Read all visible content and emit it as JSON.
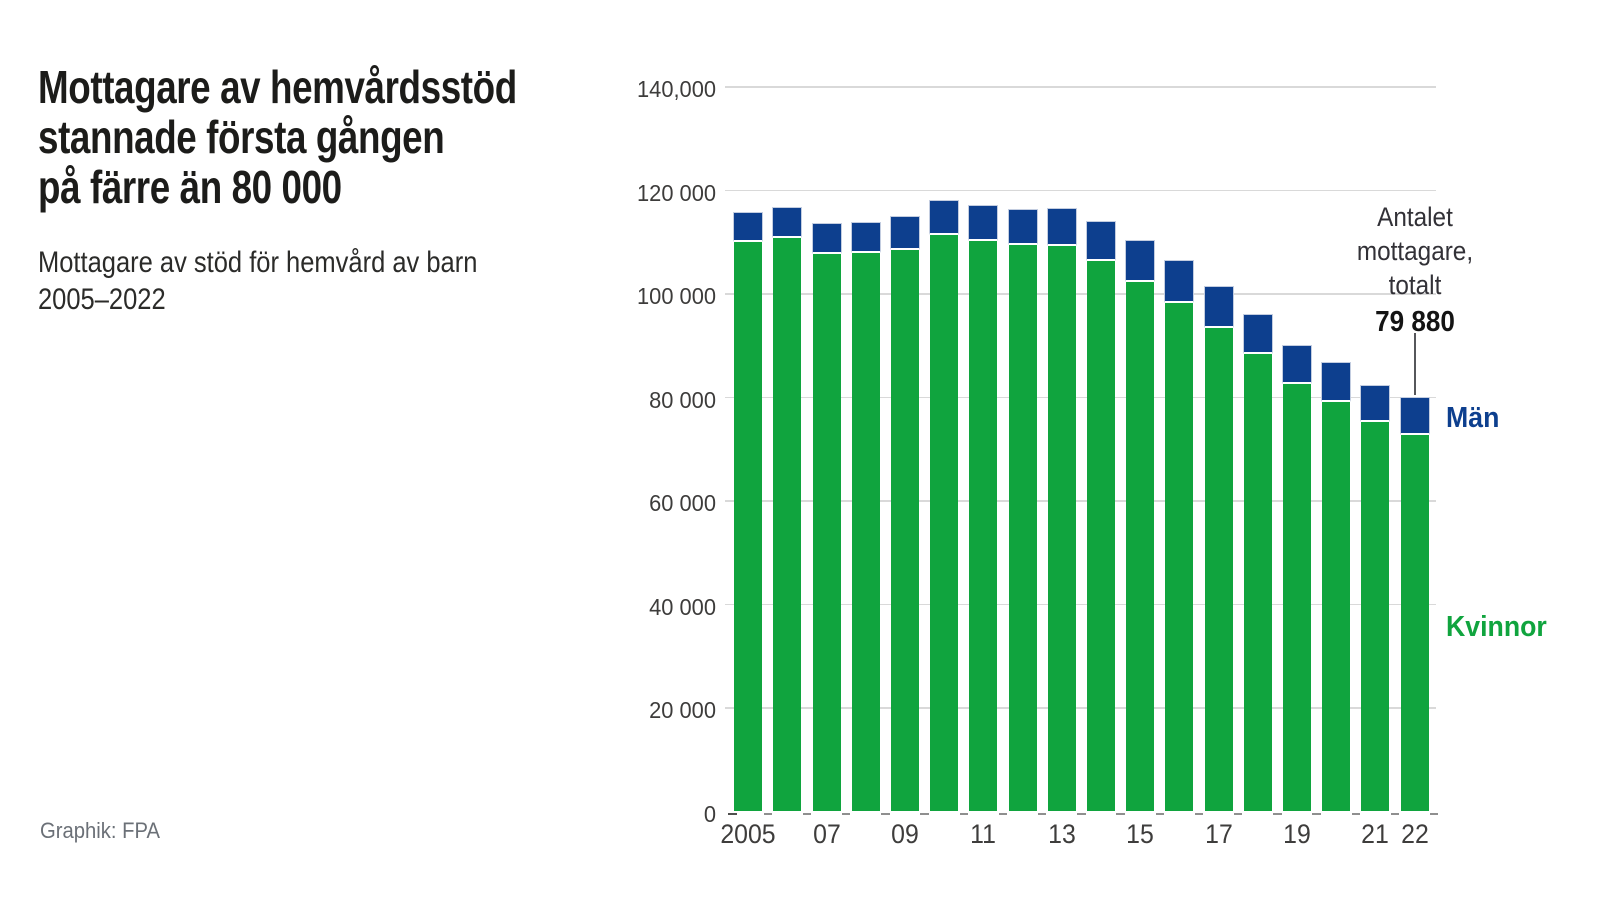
{
  "header": {
    "title_lines": [
      "Mottagare av hemvårdsstöd",
      "stannade första gången",
      "på färre än 80 000"
    ],
    "subtitle_lines": [
      "Mottagare av stöd för hemvård av barn",
      "2005–2022"
    ]
  },
  "footer": {
    "credit": "Graphik: FPA"
  },
  "chart_data": {
    "type": "bar",
    "stacked": true,
    "title": "Mottagare av hemvårdsstöd stannade första gången på färre än 80 000",
    "subtitle": "Mottagare av stöd för hemvård av barn 2005–2022",
    "categories": [
      2005,
      2006,
      2007,
      2008,
      2009,
      2010,
      2011,
      2012,
      2013,
      2014,
      2015,
      2016,
      2017,
      2018,
      2019,
      2020,
      2021,
      2022
    ],
    "series": [
      {
        "name": "Kvinnor",
        "color": "#10a43e",
        "values": [
          110400,
          111300,
          108100,
          108300,
          108900,
          111800,
          110700,
          109800,
          109600,
          106700,
          102700,
          98600,
          93900,
          88800,
          83000,
          79600,
          75700,
          73200
        ]
      },
      {
        "name": "Män",
        "color": "#0d3f8e",
        "values": [
          5200,
          5400,
          5500,
          5500,
          5900,
          6100,
          6400,
          6400,
          6800,
          7300,
          7500,
          7700,
          7400,
          7100,
          7000,
          7100,
          6500,
          6680
        ]
      }
    ],
    "totals": [
      115600,
      116700,
      113600,
      113800,
      114800,
      117900,
      117100,
      116200,
      116400,
      114000,
      110200,
      106300,
      101300,
      95900,
      90000,
      86700,
      82200,
      79880
    ],
    "ylim": [
      0,
      140000
    ],
    "grid": "horizontal",
    "y_axis": {
      "ticks": [
        {
          "value": 140000,
          "label": "140,000"
        },
        {
          "value": 120000,
          "label": "120 000"
        },
        {
          "value": 100000,
          "label": "100 000"
        },
        {
          "value": 80000,
          "label": "80 000"
        },
        {
          "value": 60000,
          "label": "60 000"
        },
        {
          "value": 40000,
          "label": "40 000"
        },
        {
          "value": 20000,
          "label": "20 000"
        },
        {
          "value": 0,
          "label": "0"
        }
      ]
    },
    "x_axis": {
      "tick_labels": [
        {
          "year": 2005,
          "label": "2005"
        },
        {
          "year": 2007,
          "label": "07"
        },
        {
          "year": 2009,
          "label": "09"
        },
        {
          "year": 2011,
          "label": "11"
        },
        {
          "year": 2013,
          "label": "13"
        },
        {
          "year": 2015,
          "label": "15"
        },
        {
          "year": 2017,
          "label": "17"
        },
        {
          "year": 2019,
          "label": "19"
        },
        {
          "year": 2021,
          "label": "21"
        },
        {
          "year": 2022,
          "label": "22"
        }
      ]
    },
    "annotation": {
      "lines": [
        "Antalet",
        "mottagare,",
        "totalt"
      ],
      "value": "79 880",
      "points_to_year": 2022
    },
    "legend_position": "right"
  }
}
